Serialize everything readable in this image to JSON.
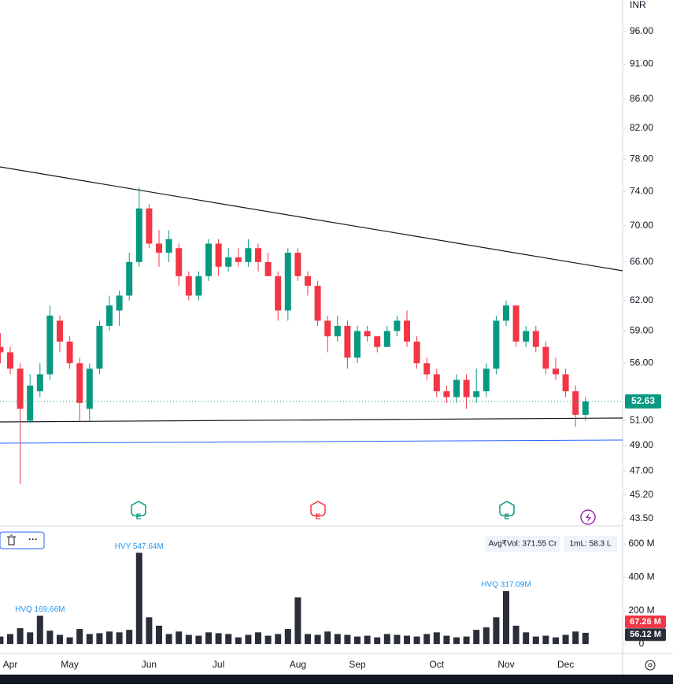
{
  "chart_data": [
    {
      "type": "candlestick",
      "currency": "INR",
      "categories": [
        null,
        "Apr",
        null,
        null,
        null,
        null,
        null,
        "May",
        null,
        null,
        null,
        null,
        null,
        null,
        null,
        "Jun",
        null,
        null,
        null,
        null,
        null,
        null,
        "Jul",
        null,
        null,
        null,
        null,
        null,
        null,
        null,
        "Aug",
        null,
        null,
        null,
        null,
        null,
        "Sep",
        null,
        null,
        null,
        null,
        null,
        null,
        null,
        "Oct",
        null,
        null,
        null,
        null,
        null,
        null,
        "Nov",
        null,
        null,
        null,
        null,
        null,
        "Dec",
        null,
        null
      ],
      "open": [
        57.5,
        57,
        55.5,
        51,
        53.5,
        55,
        60,
        58,
        56,
        52,
        55.5,
        59.5,
        61,
        62.5,
        66,
        72,
        68,
        67,
        67.5,
        64.5,
        62.5,
        64.5,
        68,
        65.5,
        66.5,
        66,
        67.5,
        66,
        64.5,
        61,
        67,
        64.5,
        63.5,
        60,
        58.5,
        59.5,
        56.5,
        59,
        58.5,
        57.5,
        59,
        60,
        58,
        56,
        55,
        53.5,
        53,
        54.5,
        53,
        53.5,
        55.5,
        60,
        61.5,
        58,
        59,
        57.5,
        55.5,
        55,
        53.5,
        51.5
      ],
      "high": [
        58.8,
        57.5,
        56,
        55,
        56,
        61.5,
        60.5,
        58.5,
        56.5,
        56,
        60,
        62.5,
        63,
        67,
        74.5,
        72.5,
        69.5,
        69.5,
        68,
        65,
        65,
        68.5,
        68.5,
        67.5,
        67.5,
        68.5,
        68,
        67,
        65,
        67.5,
        67.5,
        65,
        64,
        60.5,
        60.5,
        60,
        59.5,
        59.5,
        58.5,
        59.5,
        60.5,
        61,
        58.5,
        56.5,
        55.5,
        54,
        55,
        55,
        55.5,
        56,
        60.5,
        62,
        61.5,
        59.5,
        59.5,
        58,
        56.5,
        55.5,
        54,
        53
      ],
      "low": [
        56,
        55,
        46,
        50.8,
        53,
        54.5,
        57,
        55.5,
        51,
        51,
        55,
        59,
        59.5,
        62,
        65.5,
        67.5,
        65.5,
        66,
        63.5,
        62,
        62,
        64,
        64.5,
        65,
        65.5,
        65.5,
        65,
        64.5,
        60,
        60,
        64,
        62.5,
        59.5,
        57,
        58,
        55.5,
        56,
        58,
        57,
        57.5,
        58.5,
        57.5,
        55.5,
        54.5,
        53,
        52.5,
        52.5,
        52,
        52.5,
        53,
        55,
        59.5,
        57.5,
        57.5,
        57,
        55,
        54.5,
        53,
        50.5,
        51
      ],
      "close": [
        57,
        55.5,
        52,
        54,
        55,
        60.5,
        58,
        56,
        52.5,
        55.5,
        59.5,
        61.5,
        62.5,
        66,
        72,
        68,
        67,
        68.5,
        64.5,
        62.5,
        64.5,
        68,
        65.5,
        66.5,
        66,
        67.5,
        66,
        64.5,
        61,
        67,
        64.5,
        63.5,
        60,
        58.5,
        59.5,
        56.5,
        59,
        58.5,
        57.5,
        59,
        60,
        58,
        56,
        55,
        53.5,
        53,
        54.5,
        53,
        53.5,
        55.5,
        60,
        61.5,
        58,
        59,
        57.5,
        55.5,
        55,
        53.5,
        51.5,
        52.63
      ],
      "up_color": "#089981",
      "down_color": "#f23645",
      "log_scale": true,
      "ylim": [
        43,
        101
      ],
      "yticks": [
        {
          "value": 96,
          "label": "96.00"
        },
        {
          "value": 91,
          "label": "91.00"
        },
        {
          "value": 86,
          "label": "86.00"
        },
        {
          "value": 82,
          "label": "82.00"
        },
        {
          "value": 78,
          "label": "78.00"
        },
        {
          "value": 74,
          "label": "74.00"
        },
        {
          "value": 70,
          "label": "70.00"
        },
        {
          "value": 66,
          "label": "66.00"
        },
        {
          "value": 62,
          "label": "62.00"
        },
        {
          "value": 59,
          "label": "59.00"
        },
        {
          "value": 56,
          "label": "56.00"
        },
        {
          "value": 51,
          "label": "51.00"
        },
        {
          "value": 49,
          "label": "49.00"
        },
        {
          "value": 47,
          "label": "47.00"
        },
        {
          "value": 45.2,
          "label": "45.20"
        },
        {
          "value": 43.5,
          "label": "43.50"
        }
      ],
      "event_markers": [
        "E",
        "E",
        "E"
      ]
    },
    {
      "type": "bar",
      "color": "#2a2e39",
      "label_color": "#2196f3",
      "values": [
        45,
        60,
        95,
        70,
        169.66,
        80,
        55,
        40,
        90,
        60,
        65,
        75,
        70,
        85,
        547.64,
        160,
        110,
        60,
        75,
        55,
        50,
        70,
        65,
        60,
        40,
        55,
        70,
        50,
        60,
        90,
        280,
        60,
        55,
        75,
        60,
        55,
        45,
        50,
        40,
        60,
        55,
        50,
        45,
        60,
        70,
        50,
        40,
        45,
        85,
        100,
        160,
        317.09,
        110,
        70,
        45,
        50,
        40,
        55,
        75,
        67.26
      ],
      "value_labels": [
        null,
        null,
        null,
        null,
        "HVQ 169.66M",
        null,
        null,
        null,
        null,
        null,
        null,
        null,
        null,
        null,
        "HVY 547.64M",
        null,
        null,
        null,
        null,
        null,
        null,
        null,
        null,
        null,
        null,
        null,
        null,
        null,
        null,
        null,
        null,
        null,
        null,
        null,
        null,
        null,
        null,
        null,
        null,
        null,
        null,
        null,
        null,
        null,
        null,
        null,
        null,
        null,
        null,
        null,
        null,
        "HVQ 317.09M",
        null,
        null,
        null,
        null,
        null,
        null,
        null,
        null
      ],
      "ylim": [
        -56,
        690
      ],
      "yticks": [
        0,
        {
          "value": 200,
          "label": "200 M"
        },
        {
          "value": 400,
          "label": "400 M"
        },
        {
          "value": 600,
          "label": "600 M"
        }
      ],
      "badges": [
        {
          "value": 67.26,
          "label": "67.26 M",
          "color": "#f23645"
        },
        {
          "value": 56.12,
          "label": "56.12 M",
          "color": "#2a2e39"
        }
      ],
      "stats": [
        "Avg₹Vol: 371.55 Cr",
        "1mL: 58.3 L"
      ]
    }
  ]
}
